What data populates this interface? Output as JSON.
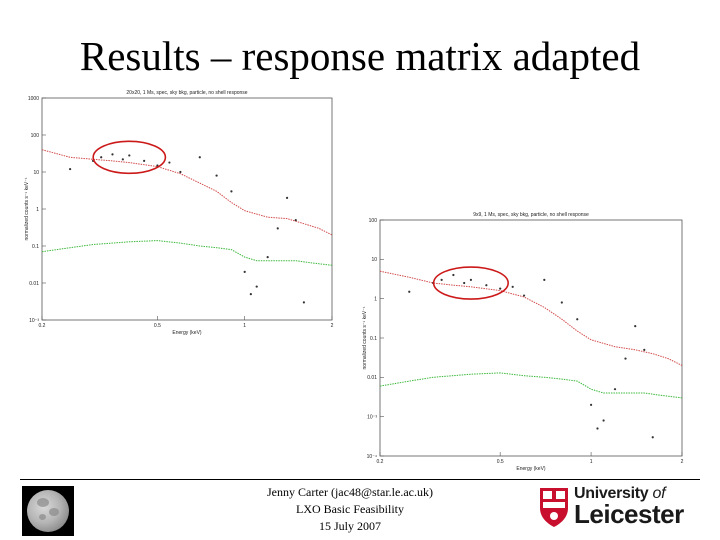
{
  "slide": {
    "title": "Results – response matrix adapted"
  },
  "footer": {
    "author": "Jenny Carter (jac48@star.le.ac.uk)",
    "project": "LXO Basic Feasibility",
    "date": "15 July 2007"
  },
  "logo": {
    "line1_main": "University ",
    "line1_of": "of",
    "line2": "Leicester",
    "crest_lettering": "LEICESTER",
    "crest_colors": [
      "#c8102e",
      "#ffffff"
    ]
  },
  "colors": {
    "source_series": "#d24a4a",
    "background_series": "#3cb83c",
    "data_points": "#333333",
    "highlight_ellipse": "#cc1a1a"
  },
  "chart_data": [
    {
      "type": "scatter",
      "title": "20x20, 1 Ms, spec, sky bkg, particle, no shell response",
      "xlabel": "Energy (keV)",
      "ylabel": "normalized counts s⁻¹ keV⁻¹",
      "x_scale": "log",
      "y_scale": "log",
      "xlim": [
        0.2,
        2
      ],
      "ylim": [
        0.001,
        1000
      ],
      "x_ticks": [
        "0.2",
        "0.5",
        "1",
        "2"
      ],
      "y_ticks": [
        "1000",
        "100",
        "10",
        "1",
        "0.1",
        "0.01",
        "10⁻³"
      ],
      "annotation": "red ellipse highlighting 0.32–0.5 keV region",
      "series": [
        {
          "name": "",
          "color": "#d24a4a",
          "x": [
            0.2,
            0.25,
            0.3,
            0.35,
            0.4,
            0.5,
            0.6,
            0.7,
            0.8,
            0.9,
            1.0,
            1.2,
            1.4,
            1.6,
            1.8,
            2.0
          ],
          "y": [
            40,
            25,
            22,
            20,
            18,
            14,
            9,
            5,
            3,
            1.5,
            0.9,
            0.6,
            0.55,
            0.4,
            0.3,
            0.2
          ]
        },
        {
          "name": "",
          "color": "#3cb83c",
          "x": [
            0.2,
            0.25,
            0.3,
            0.4,
            0.5,
            0.6,
            0.7,
            0.8,
            0.9,
            1.0,
            1.1,
            1.3,
            1.5,
            1.7,
            2.0
          ],
          "y": [
            0.07,
            0.09,
            0.11,
            0.13,
            0.14,
            0.12,
            0.1,
            0.09,
            0.08,
            0.05,
            0.04,
            0.04,
            0.04,
            0.035,
            0.03
          ]
        },
        {
          "name": "",
          "color": "#333333",
          "x": [
            0.25,
            0.3,
            0.32,
            0.35,
            0.38,
            0.4,
            0.45,
            0.5,
            0.55,
            0.6,
            0.7,
            0.8,
            0.9,
            1.0,
            1.05,
            1.1,
            1.2,
            1.3,
            1.4,
            1.5,
            1.6
          ],
          "y": [
            12,
            20,
            25,
            30,
            22,
            28,
            20,
            15,
            18,
            10,
            25,
            8,
            3,
            0.02,
            0.005,
            0.008,
            0.05,
            0.3,
            2,
            0.5,
            0.003
          ]
        }
      ]
    },
    {
      "type": "scatter",
      "title": "9x9, 1 Ms, spec, sky bkg, particle, no shell response",
      "xlabel": "Energy (keV)",
      "ylabel": "normalized counts s⁻¹ keV⁻¹",
      "x_scale": "log",
      "y_scale": "log",
      "xlim": [
        0.2,
        2
      ],
      "ylim": [
        0.0001,
        100
      ],
      "x_ticks": [
        "0.2",
        "0.5",
        "1",
        "2"
      ],
      "y_ticks": [
        "100",
        "10",
        "1",
        "0.1",
        "0.01",
        "10⁻³",
        "10⁻⁴"
      ],
      "annotation": "red ellipse highlighting 0.32–0.5 keV region",
      "series": [
        {
          "name": "",
          "color": "#d24a4a",
          "x": [
            0.2,
            0.25,
            0.3,
            0.35,
            0.4,
            0.5,
            0.6,
            0.7,
            0.8,
            0.9,
            1.0,
            1.2,
            1.4,
            1.6,
            1.8,
            2.0
          ],
          "y": [
            5,
            3.5,
            2.5,
            2.2,
            2.0,
            1.6,
            1.1,
            0.6,
            0.3,
            0.15,
            0.09,
            0.06,
            0.05,
            0.04,
            0.03,
            0.02
          ]
        },
        {
          "name": "",
          "color": "#3cb83c",
          "x": [
            0.2,
            0.25,
            0.3,
            0.4,
            0.5,
            0.6,
            0.7,
            0.8,
            0.9,
            1.0,
            1.1,
            1.3,
            1.5,
            1.7,
            2.0
          ],
          "y": [
            0.006,
            0.008,
            0.01,
            0.012,
            0.013,
            0.011,
            0.01,
            0.009,
            0.008,
            0.005,
            0.004,
            0.004,
            0.004,
            0.0035,
            0.003
          ]
        },
        {
          "name": "",
          "color": "#333333",
          "x": [
            0.25,
            0.3,
            0.32,
            0.35,
            0.38,
            0.4,
            0.45,
            0.5,
            0.55,
            0.6,
            0.7,
            0.8,
            0.9,
            1.0,
            1.05,
            1.1,
            1.2,
            1.3,
            1.4,
            1.5,
            1.6
          ],
          "y": [
            1.5,
            2.5,
            3,
            4,
            2.5,
            3,
            2.2,
            1.8,
            2,
            1.2,
            3,
            0.8,
            0.3,
            0.002,
            0.0005,
            0.0008,
            0.005,
            0.03,
            0.2,
            0.05,
            0.0003
          ]
        }
      ]
    }
  ]
}
